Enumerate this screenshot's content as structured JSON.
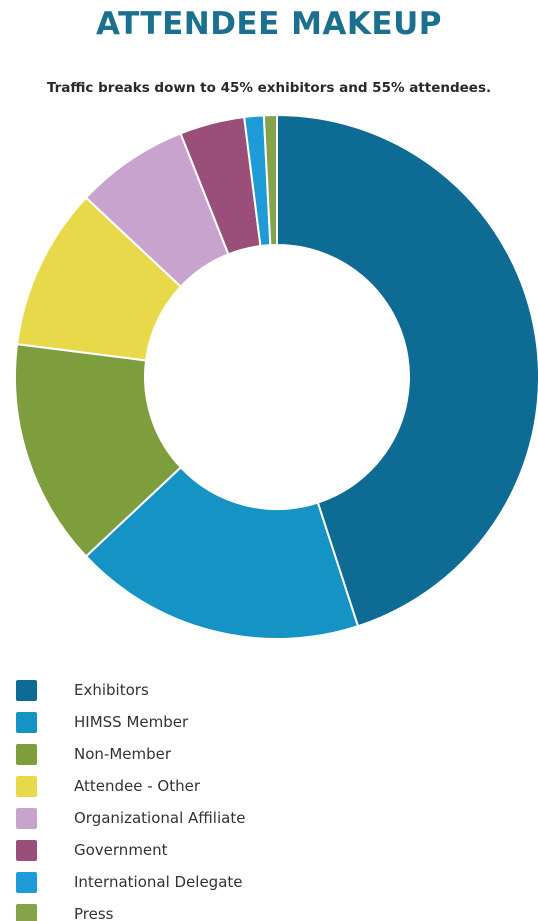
{
  "title": "ATTENDEE MAKEUP",
  "subtitle": "Traffic breaks down to 45% exhibitors and 55% attendees.",
  "chart_data": {
    "type": "pie",
    "hole": "donut",
    "title": "ATTENDEE MAKEUP",
    "subtitle": "Traffic breaks down to 45% exhibitors and 55% attendees.",
    "legend_position": "bottom-left",
    "categories": [
      "Exhibitors",
      "HIMSS Member",
      "Non-Member",
      "Attendee - Other",
      "Organizational Affiliate",
      "Government",
      "International Delegate",
      "Press"
    ],
    "values": [
      45,
      18,
      14,
      10,
      7,
      4,
      1.2,
      0.8
    ],
    "colors": [
      "#0e6b93",
      "#1493c4",
      "#7e9d3d",
      "#e8d94a",
      "#c7a3cd",
      "#9a4f7b",
      "#1e9bd7",
      "#86a34a"
    ]
  }
}
